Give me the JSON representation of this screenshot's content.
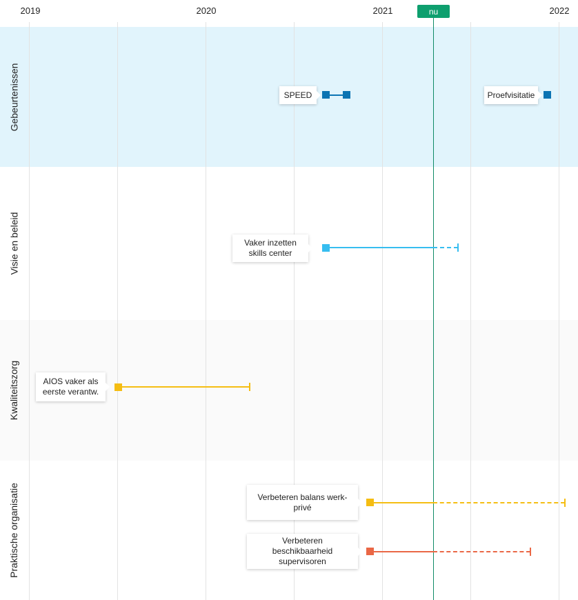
{
  "axis": {
    "years": [
      "2019",
      "2020",
      "2021",
      "2022"
    ],
    "now_label": "nu"
  },
  "lanes": [
    {
      "label": "Gebeurtenissen",
      "background": "#e1f4fc"
    },
    {
      "label": "Visie en beleid",
      "background": "#ffffff"
    },
    {
      "label": "Kwaliteitszorg",
      "background": "#fafafa"
    },
    {
      "label": "Praktische organisatie",
      "background": "#ffffff"
    }
  ],
  "items": [
    {
      "lane": "Gebeurtenissen",
      "label": "SPEED",
      "color": "#0b74b3"
    },
    {
      "lane": "Gebeurtenissen",
      "label": "Proefvisitatie",
      "color": "#0b74b3"
    },
    {
      "lane": "Visie en beleid",
      "label": "Vaker inzetten skills center",
      "color": "#36bdf0"
    },
    {
      "lane": "Kwaliteitszorg",
      "label": "AIOS vaker als eerste verantw.",
      "color": "#f5bd12"
    },
    {
      "lane": "Praktische organisatie",
      "label": "Verbeteren balans werk-privé",
      "color": "#f5bd12"
    },
    {
      "lane": "Praktische organisatie",
      "label": "Verbeteren beschikbaarheid supervisoren",
      "color": "#ea6745"
    }
  ],
  "colors": {
    "now": "#0e9f6e",
    "gridline": "#e2e2e2"
  }
}
